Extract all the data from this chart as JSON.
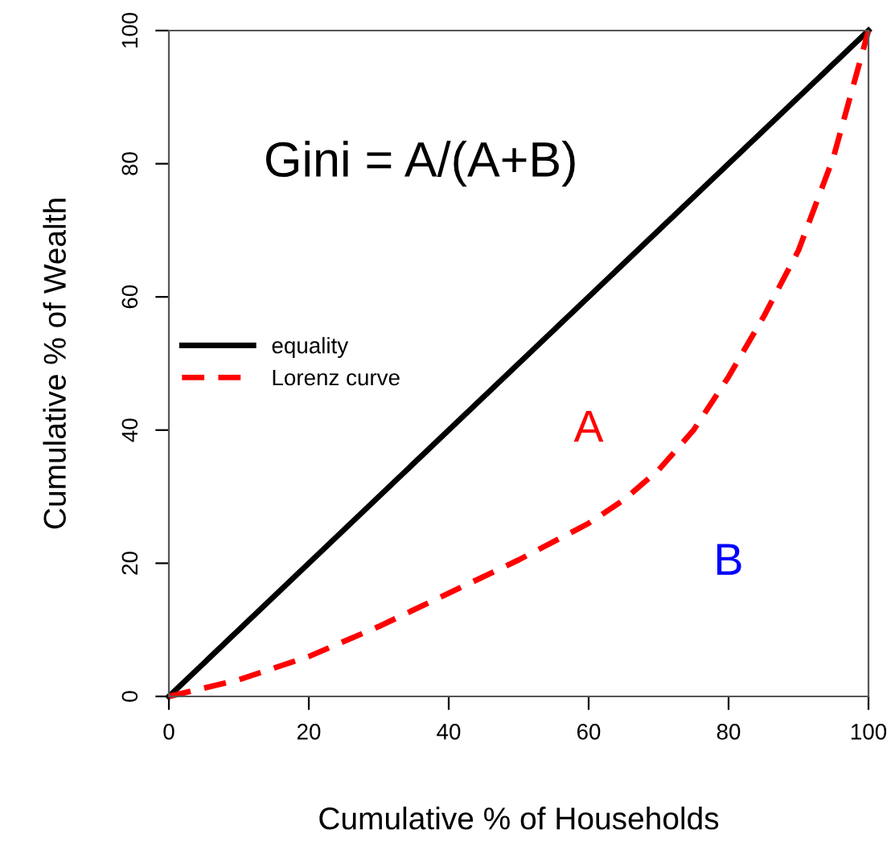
{
  "chart_data": {
    "type": "line",
    "xlabel": "Cumulative % of Households",
    "ylabel": "Cumulative % of Wealth",
    "xlim": [
      0,
      100
    ],
    "ylim": [
      0,
      100
    ],
    "xticks": [
      0,
      20,
      40,
      60,
      80,
      100
    ],
    "yticks": [
      0,
      20,
      40,
      60,
      80,
      100
    ],
    "grid": false,
    "legend": "left",
    "marker": "none",
    "series": [
      {
        "name": "equality",
        "color": "#000000",
        "line_style": "solid",
        "x": [
          0,
          100
        ],
        "values": [
          0,
          100
        ]
      },
      {
        "name": "Lorenz curve",
        "color": "#ff0000",
        "line_style": "dashed",
        "x": [
          0,
          10,
          20,
          30,
          40,
          50,
          60,
          65,
          70,
          75,
          80,
          85,
          90,
          95,
          100
        ],
        "values": [
          0,
          2.5,
          6,
          10.5,
          15.5,
          20.5,
          26,
          29.5,
          34,
          40,
          48,
          57,
          67,
          81,
          100
        ]
      }
    ],
    "annotations": [
      "Gini = A/(A+B)",
      "A",
      "B"
    ]
  }
}
